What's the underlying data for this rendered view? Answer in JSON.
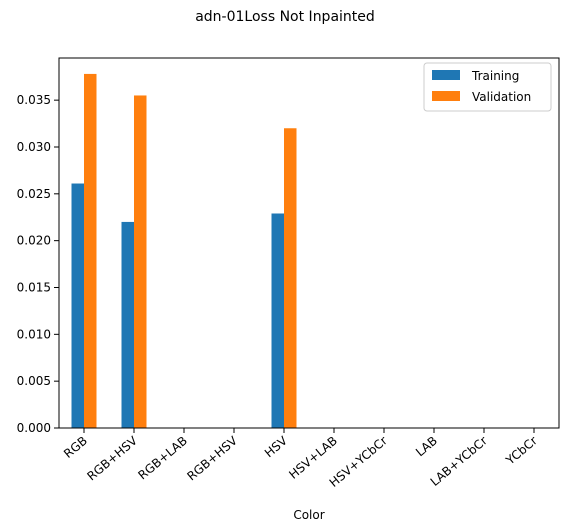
{
  "chart_data": {
    "type": "bar",
    "title": "adn-01Loss Not Inpainted",
    "xlabel": "Color",
    "ylabel": "",
    "categories": [
      "RGB",
      "RGB+HSV",
      "RGB+LAB",
      "RGB+HSV",
      "HSV",
      "HSV+LAB",
      "HSV+YCbCr",
      "LAB",
      "LAB+YCbCr",
      "YCbCr"
    ],
    "series": [
      {
        "name": "Training",
        "color": "#1f77b4",
        "values": [
          0.0261,
          0.022,
          0,
          0,
          0.0229,
          0,
          0,
          0,
          0,
          0
        ]
      },
      {
        "name": "Validation",
        "color": "#ff7f0e",
        "values": [
          0.0378,
          0.0355,
          0,
          0,
          0.032,
          0,
          0,
          0,
          0,
          0
        ]
      }
    ],
    "ylim": [
      0,
      0.0395
    ],
    "yticks": [
      "0.000",
      "0.005",
      "0.010",
      "0.015",
      "0.020",
      "0.025",
      "0.030",
      "0.035"
    ],
    "ytick_values": [
      0,
      0.005,
      0.01,
      0.015,
      0.02,
      0.025,
      0.03,
      0.035
    ],
    "grid": false,
    "legend_position": "top-right"
  }
}
